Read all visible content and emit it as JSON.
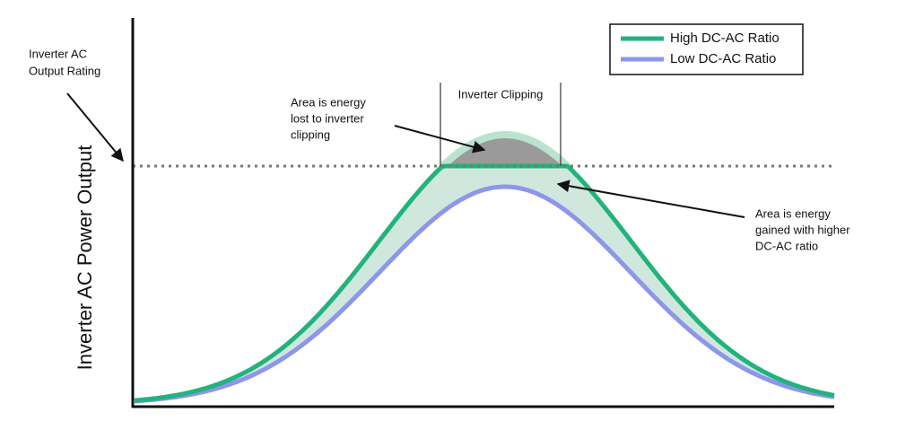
{
  "y_axis_label": "Inverter AC Power Output",
  "rating_label": [
    "Inverter AC",
    "Output Rating"
  ],
  "clipping_label": "Inverter Clipping",
  "lost_note": [
    "Area is energy",
    "lost to inverter",
    "clipping"
  ],
  "gained_note": [
    "Area is energy",
    "gained with higher",
    "DC-AC ratio"
  ],
  "legend": [
    {
      "name": "High DC-AC Ratio",
      "color": "#22b37c"
    },
    {
      "name": "Low DC-AC Ratio",
      "color": "#8e95ec"
    }
  ]
}
